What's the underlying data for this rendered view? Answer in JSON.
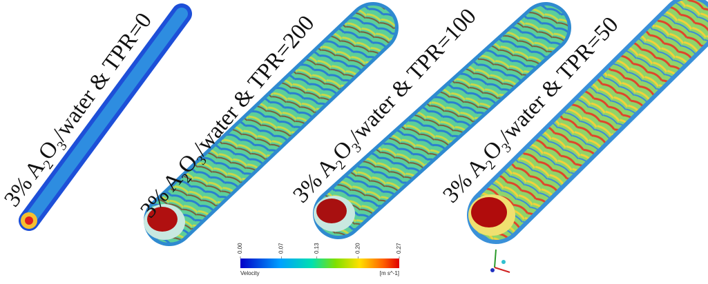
{
  "labels": [
    {
      "parts": [
        "3% A",
        "2",
        "O",
        "3",
        "/water & TPR=0"
      ]
    },
    {
      "parts": [
        "3% A",
        "2",
        "O",
        "3",
        "/water & TPR=200"
      ]
    },
    {
      "parts": [
        "3% A",
        "2",
        "O",
        "3",
        "/water & TPR=100"
      ]
    },
    {
      "parts": [
        "3% A",
        "2",
        "O",
        "3",
        "/water & TPR=50"
      ]
    }
  ],
  "colorbar": {
    "title": "Velocity",
    "unit": "[m s^-1]",
    "range": [
      0,
      0.27
    ],
    "ticks": [
      {
        "value": 0,
        "label": "0.00"
      },
      {
        "value": 0.07,
        "label": "0.07"
      },
      {
        "value": 0.13,
        "label": "0.13"
      },
      {
        "value": 0.2,
        "label": "0.20"
      },
      {
        "value": 0.27,
        "label": "0.27"
      }
    ]
  }
}
